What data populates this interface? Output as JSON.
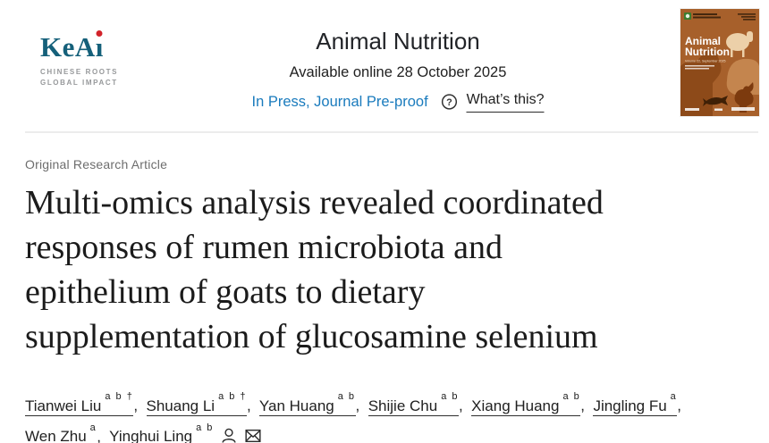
{
  "colors": {
    "link_blue": "#1a7bbd",
    "keai_teal": "#15607a",
    "keai_dot_red": "#d2232a",
    "label_gray": "#6d6d6d",
    "text_dark": "#212121",
    "divider_gray": "#ececec",
    "cover_orange": "#a7602b"
  },
  "header": {
    "logo": {
      "brand": "KeAi",
      "brand_prefix": "KeA",
      "brand_i": "ı",
      "tagline_line1": "CHINESE ROOTS",
      "tagline_line2": "GLOBAL IMPACT"
    },
    "journal_title": "Animal Nutrition",
    "availability": "Available online 28 October 2025",
    "status_link": "In Press, Journal Pre-proof",
    "help_icon": "question-mark-circle-icon",
    "whats_this": "What’s this?",
    "help_glyph": "?",
    "cover": {
      "title_line1": "Animal",
      "title_line2": "Nutrition",
      "volume": "Volume 22, September 2025"
    }
  },
  "article": {
    "type_label": "Original Research Article",
    "title": "Multi-omics analysis revealed coordinated responses of rumen microbiota and epithelium of goats to dietary supplementation of glucosamine selenium",
    "title_lines": [
      "Multi-omics analysis revealed coordinated",
      "responses of rumen microbiota and",
      "epithelium of goats to dietary",
      "supplementation of glucosamine selenium"
    ],
    "authors": [
      {
        "name": "Tianwei Liu",
        "sup": "a b †",
        "break_after": false
      },
      {
        "name": "Shuang Li",
        "sup": "a b †",
        "break_after": false
      },
      {
        "name": "Yan Huang",
        "sup": "a b",
        "break_after": false
      },
      {
        "name": "Shijie Chu",
        "sup": "a b",
        "break_after": false
      },
      {
        "name": "Xiang Huang",
        "sup": "a b",
        "break_after": false
      },
      {
        "name": "Jingling Fu",
        "sup": "a",
        "break_after": true
      },
      {
        "name": "Wen Zhu",
        "sup": "a",
        "break_after": false
      },
      {
        "name": "Yinghui Ling",
        "sup": "a b",
        "break_after": false,
        "icons": [
          "person-icon",
          "envelope-icon"
        ]
      }
    ]
  }
}
